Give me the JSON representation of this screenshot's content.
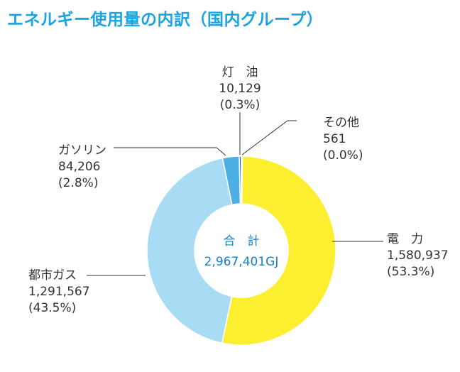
{
  "title": "エネルギー使用量の内訳（国内グループ）",
  "chart_data": {
    "type": "pie",
    "subtype": "donut",
    "title": "エネルギー使用量の内訳（国内グループ）",
    "center_label": {
      "line1": "合　計",
      "line2": "2,967,401GJ"
    },
    "unit": "GJ",
    "categories": [
      "電　力",
      "都市ガス",
      "ガソリン",
      "灯　油",
      "その他"
    ],
    "values": [
      1580937,
      1291567,
      84206,
      10129,
      561
    ],
    "value_labels": [
      "1,580,937",
      "1,291,567",
      "84,206",
      "10,129",
      "561"
    ],
    "percents": [
      "(53.3%)",
      "(43.5%)",
      "(2.8%)",
      "(0.3%)",
      "(0.0%)"
    ],
    "colors": [
      "#fcef2f",
      "#a8dcf5",
      "#4db0e4",
      "#1a6fb2",
      "#8fd1ef"
    ]
  }
}
